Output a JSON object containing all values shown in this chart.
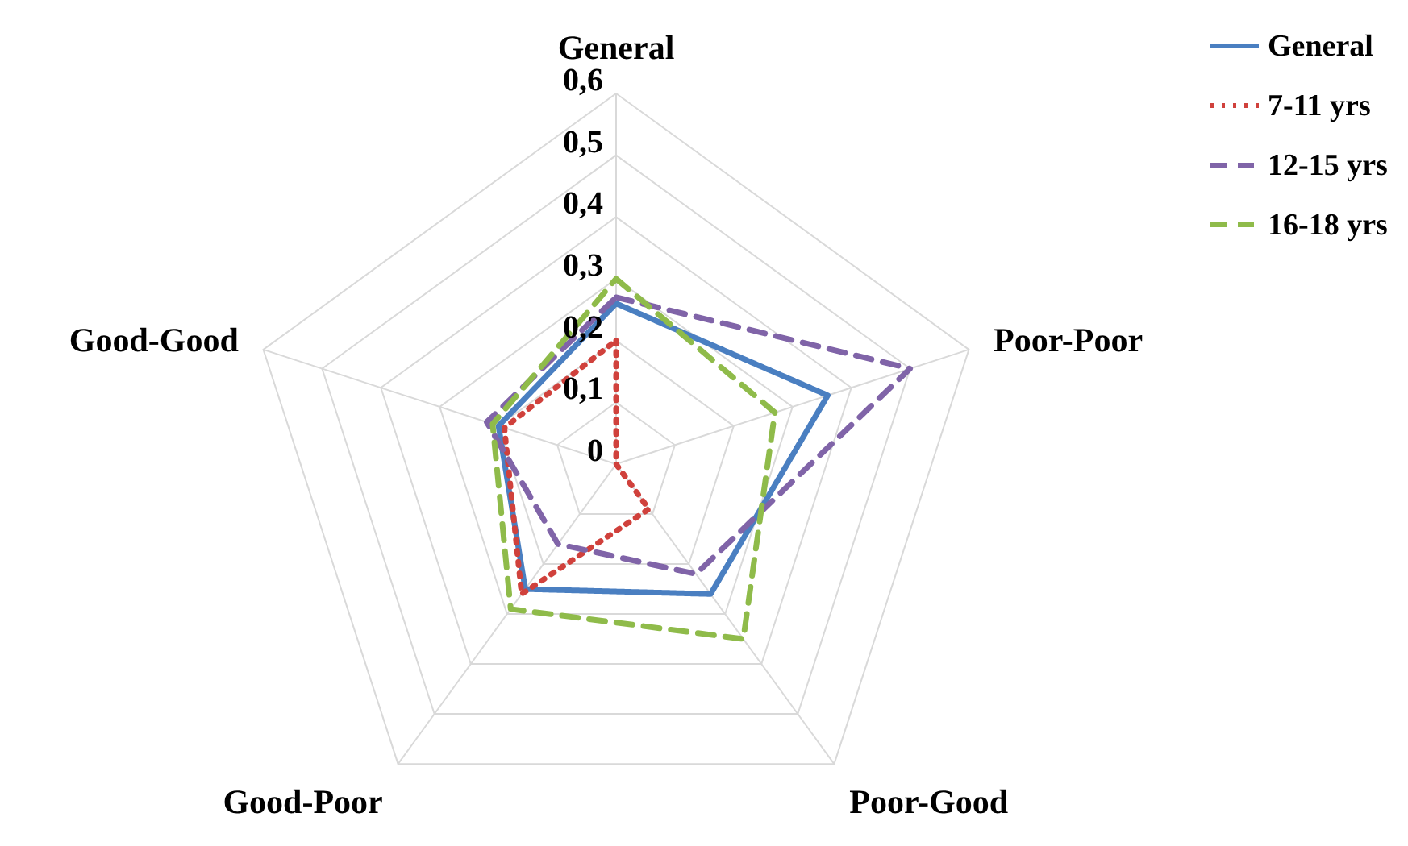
{
  "chart_data": {
    "type": "radar",
    "categories": [
      "General",
      "Poor-Poor",
      "Poor-Good",
      "Good-Poor",
      "Good-Good"
    ],
    "series": [
      {
        "name": "General",
        "color": "#4a7fc1",
        "line_style": "solid",
        "values": [
          0.26,
          0.36,
          0.26,
          0.25,
          0.2
        ]
      },
      {
        "name": "7-11 yrs",
        "color": "#d0413c",
        "line_style": "dotted",
        "values": [
          0.2,
          0,
          0.09,
          0.26,
          0.19
        ]
      },
      {
        "name": "12-15 yrs",
        "color": "#8064a8",
        "line_style": "dashed",
        "values": [
          0.27,
          0.5,
          0.22,
          0.16,
          0.22
        ]
      },
      {
        "name": "16-18 yrs",
        "color": "#8fbb4a",
        "line_style": "dashed",
        "values": [
          0.3,
          0.27,
          0.35,
          0.29,
          0.21
        ]
      }
    ],
    "ylim": [
      0,
      0.6
    ],
    "yticks": [
      {
        "value": 0,
        "label": "0"
      },
      {
        "value": 0.1,
        "label": "0,1"
      },
      {
        "value": 0.2,
        "label": "0,2"
      },
      {
        "value": 0.3,
        "label": "0,3"
      },
      {
        "value": 0.4,
        "label": "0,4"
      },
      {
        "value": 0.5,
        "label": "0,5"
      },
      {
        "value": 0.6,
        "label": "0,6"
      }
    ],
    "grid": true,
    "legend": "top right"
  }
}
